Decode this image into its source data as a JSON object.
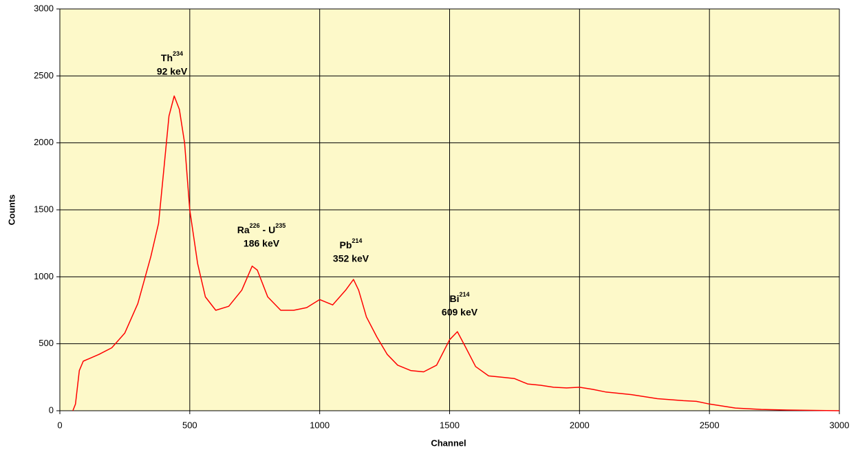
{
  "chart_data": {
    "type": "line",
    "x_label": "Channel",
    "y_label": "Counts",
    "x": [
      50,
      60,
      75,
      90,
      150,
      200,
      250,
      300,
      350,
      380,
      400,
      420,
      440,
      460,
      480,
      500,
      530,
      560,
      600,
      650,
      700,
      740,
      760,
      800,
      850,
      900,
      950,
      1000,
      1050,
      1100,
      1130,
      1150,
      1180,
      1220,
      1260,
      1300,
      1350,
      1400,
      1450,
      1500,
      1530,
      1560,
      1600,
      1650,
      1700,
      1750,
      1800,
      1850,
      1900,
      1950,
      2000,
      2050,
      2100,
      2200,
      2300,
      2400,
      2450,
      2500,
      2600,
      2700,
      2800,
      3000
    ],
    "values": [
      0,
      50,
      300,
      370,
      420,
      470,
      580,
      800,
      1150,
      1400,
      1800,
      2200,
      2350,
      2250,
      2000,
      1500,
      1100,
      850,
      750,
      780,
      900,
      1080,
      1050,
      850,
      750,
      750,
      770,
      830,
      790,
      900,
      980,
      900,
      700,
      550,
      420,
      340,
      300,
      290,
      340,
      530,
      590,
      480,
      330,
      260,
      250,
      240,
      200,
      190,
      175,
      170,
      175,
      160,
      140,
      120,
      90,
      75,
      70,
      50,
      20,
      10,
      5,
      0
    ],
    "color": "#ff0000",
    "xlim": [
      0,
      3000
    ],
    "ylim": [
      0,
      3000
    ],
    "xticks": [
      0,
      500,
      1000,
      1500,
      2000,
      2500,
      3000
    ],
    "yticks": [
      0,
      500,
      1000,
      1500,
      2000,
      2500,
      3000
    ],
    "grid": true,
    "annotations": [
      {
        "label": [
          "Th",
          "234"
        ],
        "energy": "92 keV"
      },
      {
        "label": [
          "Ra",
          "226",
          " - U",
          "235"
        ],
        "energy": "186 keV"
      },
      {
        "label": [
          "Pb",
          "214"
        ],
        "energy": "352 keV"
      },
      {
        "label": [
          "Bi",
          "214"
        ],
        "energy": "609 keV"
      }
    ]
  }
}
